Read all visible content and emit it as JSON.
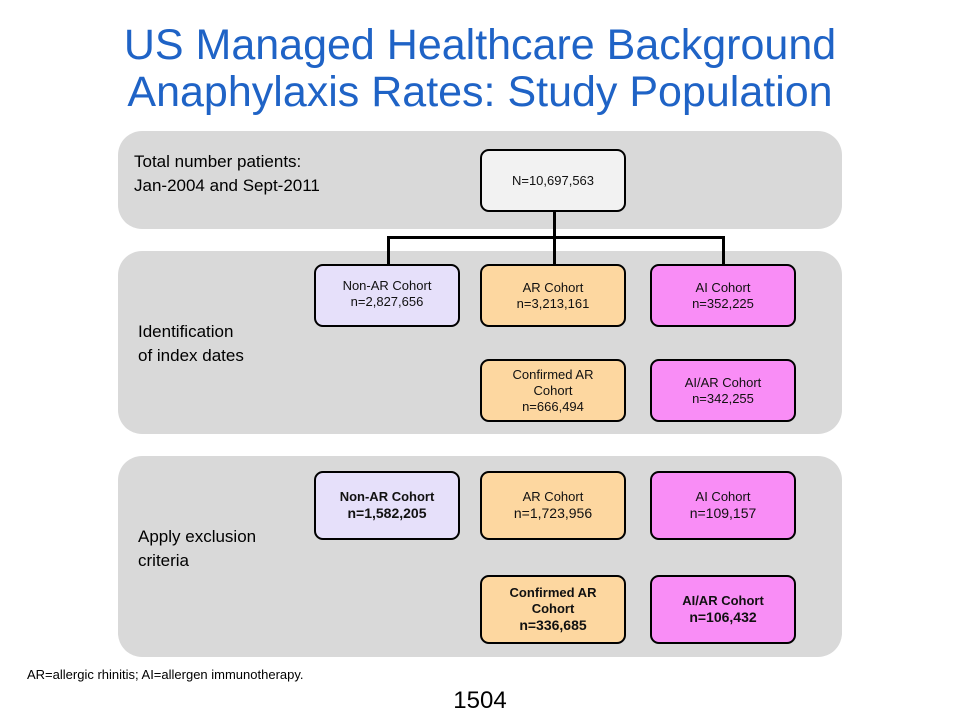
{
  "title": {
    "line1": "US Managed Healthcare Background",
    "line2": "Anaphylaxis Rates: Study Population"
  },
  "bands": {
    "total": {
      "label_line1": "Total number patients:",
      "label_line2": "Jan-2004 and Sept-2011"
    },
    "identification": {
      "label_line1": "Identification",
      "label_line2": "of index dates"
    },
    "exclusion": {
      "label_line1": "Apply exclusion",
      "label_line2": "criteria"
    }
  },
  "boxes": {
    "total": {
      "line1": "N=10,697,563"
    },
    "id_nonar": {
      "line1": "Non-AR Cohort",
      "line2": "n=2,827,656"
    },
    "id_ar": {
      "line1": "AR Cohort",
      "line2": "n=3,213,161"
    },
    "id_ai": {
      "line1": "AI Cohort",
      "line2": "n=352,225"
    },
    "id_confirmed_ar": {
      "line1": "Confirmed AR",
      "line2": "Cohort",
      "line3": "n=666,494"
    },
    "id_aiar": {
      "line1": "AI/AR Cohort",
      "line2": "n=342,255"
    },
    "ex_nonar": {
      "line1": "Non-AR Cohort",
      "line2": "n=1,582,205"
    },
    "ex_ar": {
      "line1": "AR Cohort",
      "line2": "n=1,723,956"
    },
    "ex_ai": {
      "line1": "AI Cohort",
      "line2": "n=109,157"
    },
    "ex_confirmed_ar": {
      "line1": "Confirmed AR",
      "line2": "Cohort",
      "line3": "n=336,685"
    },
    "ex_aiar": {
      "line1": "AI/AR Cohort",
      "line2": "n=106,432"
    }
  },
  "footnote": "AR=allergic rhinitis; AI=allergen  immunotherapy.",
  "page_number": "1504",
  "colors": {
    "title": "#1f63c6",
    "band": "#d9d9d9",
    "non_ar": "#e6e0fa",
    "ar": "#fdd7a0",
    "ai": "#f98df6",
    "total": "#f2f2f2"
  }
}
